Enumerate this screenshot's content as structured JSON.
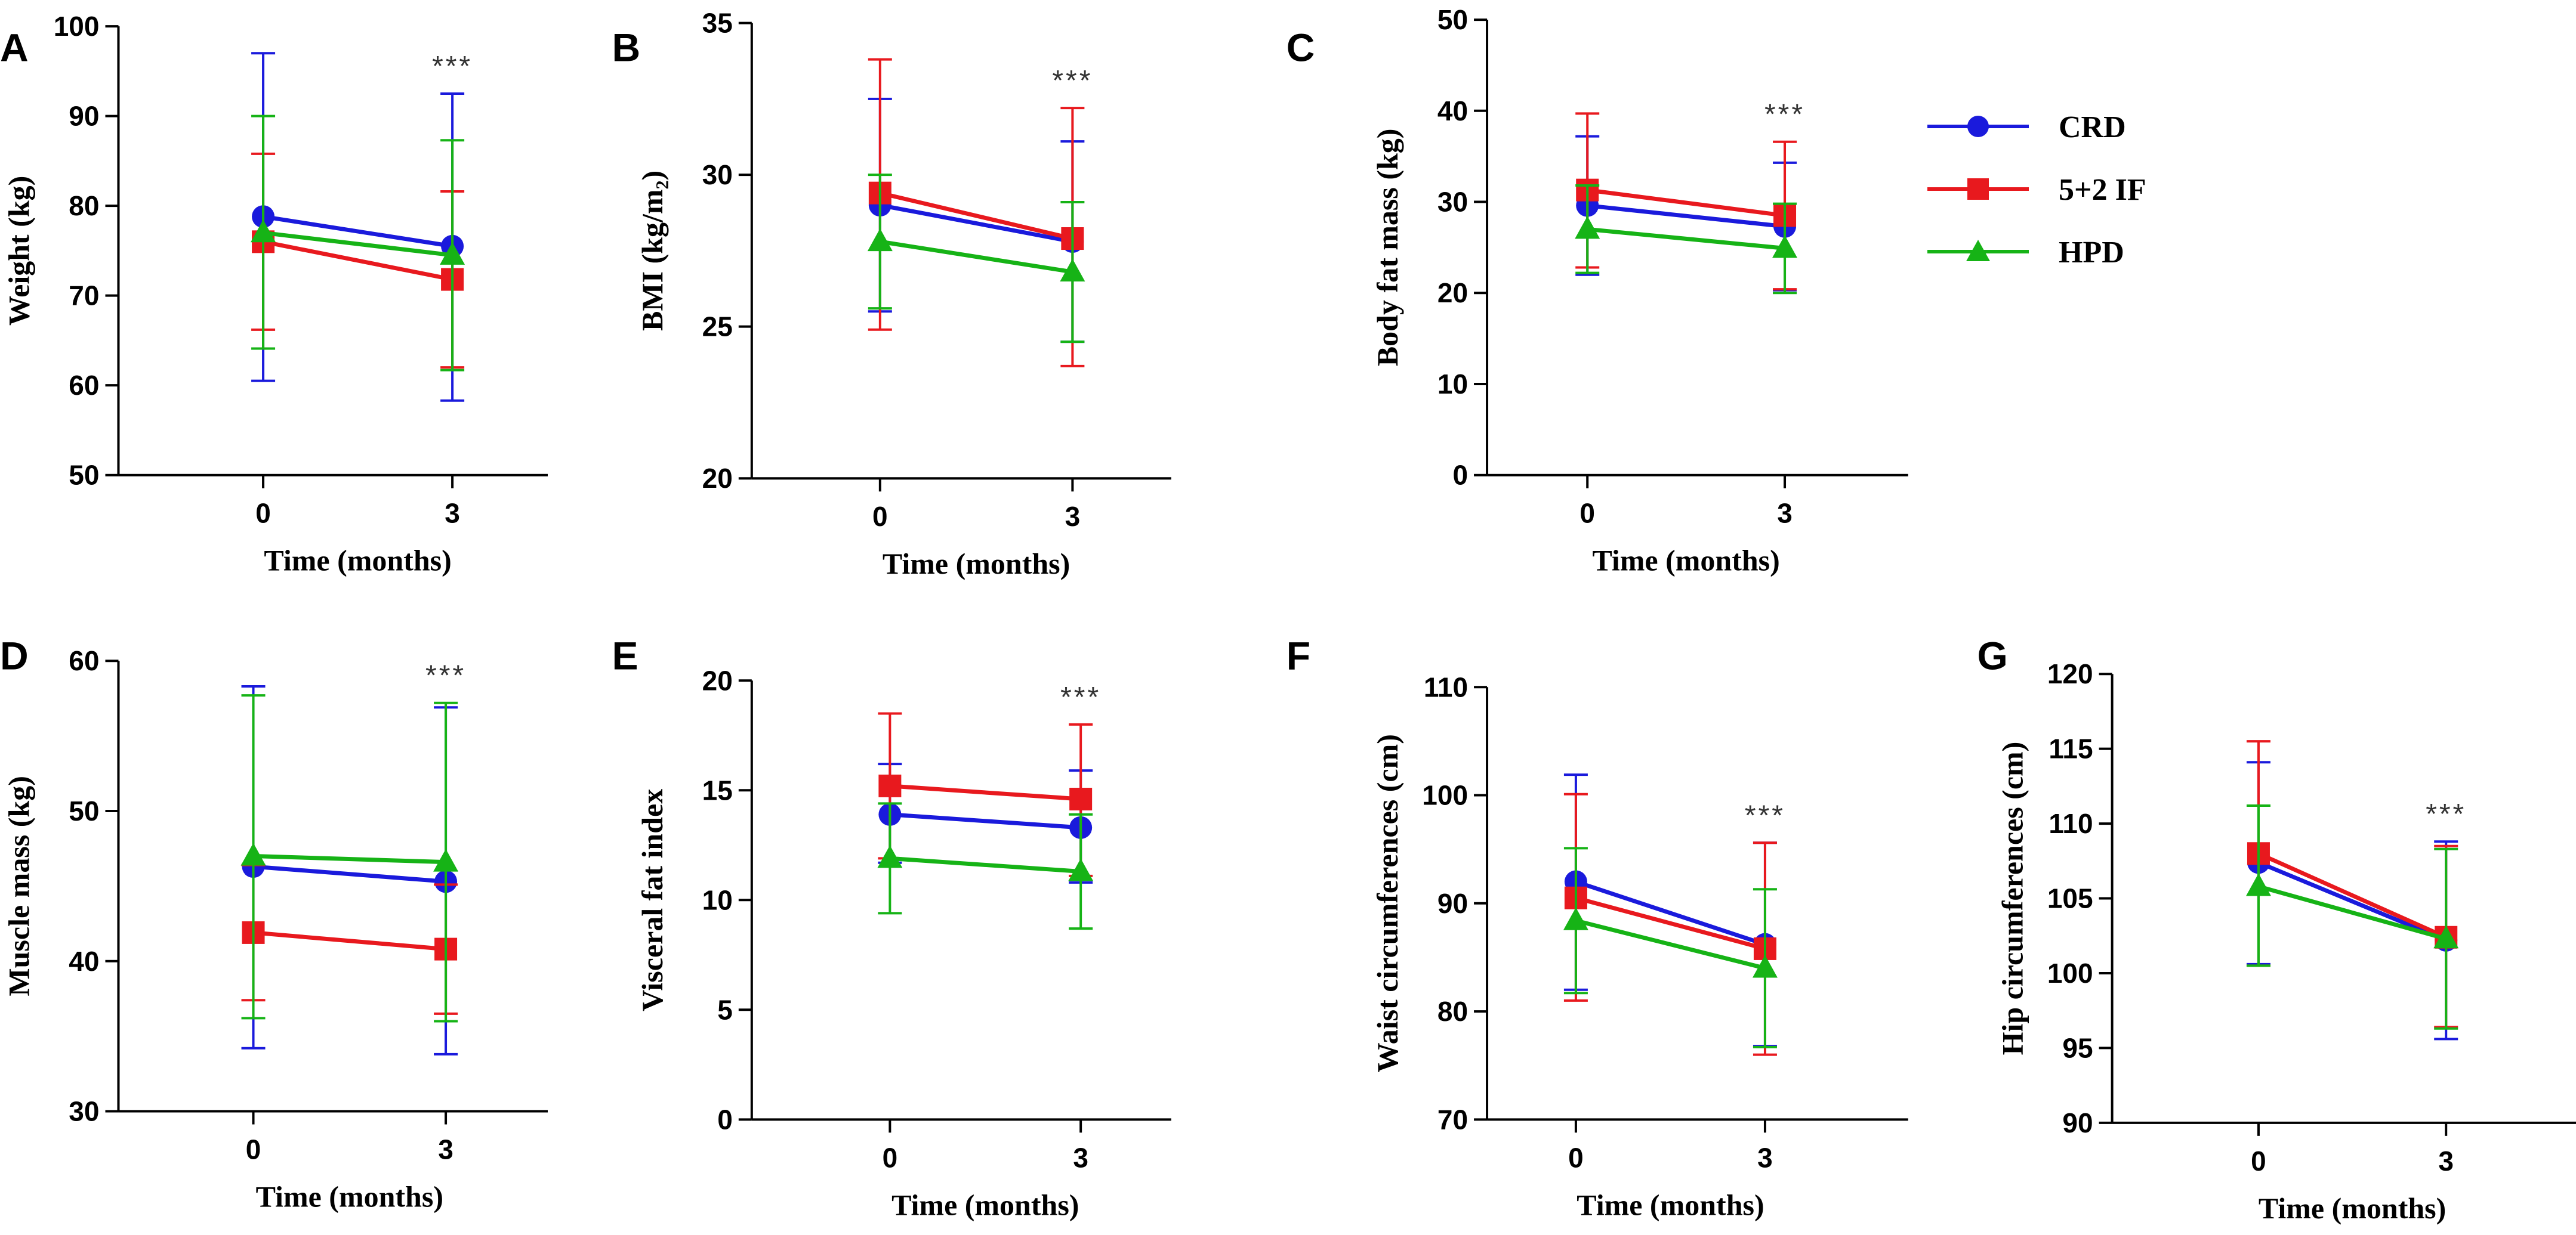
{
  "colors": {
    "CRD": "#1a1adc",
    "5+2 IF": "#e8191e",
    "HPD": "#16b316"
  },
  "legend": {
    "items": [
      {
        "label": "CRD",
        "marker": "circle"
      },
      {
        "label": "5+2 IF",
        "marker": "square"
      },
      {
        "label": "HPD",
        "marker": "triangle"
      }
    ]
  },
  "chart_data": [
    {
      "panel": "A",
      "type": "line",
      "xlabel": "Time (months)",
      "ylabel": "Weight (kg)",
      "x": [
        0,
        3
      ],
      "ylim": [
        50,
        100
      ],
      "yticks": [
        50,
        60,
        70,
        80,
        90,
        100
      ],
      "significance": "***",
      "series": [
        {
          "name": "CRD",
          "values": [
            78.8,
            75.5
          ],
          "err_low": [
            60.5,
            58.3
          ],
          "err_high": [
            97.0,
            92.5
          ]
        },
        {
          "name": "5+2 IF",
          "values": [
            76.0,
            71.8
          ],
          "err_low": [
            66.2,
            62.0
          ],
          "err_high": [
            85.8,
            81.6
          ]
        },
        {
          "name": "HPD",
          "values": [
            77.0,
            74.5
          ],
          "err_low": [
            64.1,
            61.7
          ],
          "err_high": [
            90.0,
            87.3
          ]
        }
      ]
    },
    {
      "panel": "B",
      "type": "line",
      "xlabel": "Time (months)",
      "ylabel": "BMI (kg/m₂)",
      "x": [
        0,
        3
      ],
      "ylim": [
        20,
        35
      ],
      "yticks": [
        20,
        25,
        30,
        35
      ],
      "significance": "***",
      "series": [
        {
          "name": "CRD",
          "values": [
            29.0,
            27.8
          ],
          "err_low": [
            25.5,
            24.5
          ],
          "err_high": [
            32.5,
            31.1
          ]
        },
        {
          "name": "5+2 IF",
          "values": [
            29.4,
            27.9
          ],
          "err_low": [
            24.9,
            23.7
          ],
          "err_high": [
            33.8,
            32.2
          ]
        },
        {
          "name": "HPD",
          "values": [
            27.8,
            26.8
          ],
          "err_low": [
            25.6,
            24.5
          ],
          "err_high": [
            30.0,
            29.1
          ]
        }
      ]
    },
    {
      "panel": "C",
      "type": "line",
      "xlabel": "Time (months)",
      "ylabel": "Body fat mass (kg)",
      "x": [
        0,
        3
      ],
      "ylim": [
        0,
        50
      ],
      "yticks": [
        0,
        10,
        20,
        30,
        40,
        50
      ],
      "significance": "***",
      "series": [
        {
          "name": "CRD",
          "values": [
            29.6,
            27.3
          ],
          "err_low": [
            22.0,
            20.3
          ],
          "err_high": [
            37.2,
            34.3
          ]
        },
        {
          "name": "5+2 IF",
          "values": [
            31.3,
            28.5
          ],
          "err_low": [
            22.8,
            20.4
          ],
          "err_high": [
            39.7,
            36.6
          ]
        },
        {
          "name": "HPD",
          "values": [
            27.0,
            24.9
          ],
          "err_low": [
            22.2,
            20.0
          ],
          "err_high": [
            31.8,
            29.8
          ]
        }
      ]
    },
    {
      "panel": "D",
      "type": "line",
      "xlabel": "Time (months)",
      "ylabel": "Muscle mass (kg)",
      "x": [
        0,
        3
      ],
      "ylim": [
        30,
        60
      ],
      "yticks": [
        30,
        40,
        50,
        60
      ],
      "significance": "***",
      "series": [
        {
          "name": "CRD",
          "values": [
            46.3,
            45.3
          ],
          "err_low": [
            34.2,
            33.8
          ],
          "err_high": [
            58.3,
            56.9
          ]
        },
        {
          "name": "5+2 IF",
          "values": [
            41.9,
            40.8
          ],
          "err_low": [
            37.4,
            36.5
          ],
          "err_high": [
            46.4,
            45.1
          ]
        },
        {
          "name": "HPD",
          "values": [
            47.0,
            46.6
          ],
          "err_low": [
            36.2,
            36.0
          ],
          "err_high": [
            57.7,
            57.2
          ]
        }
      ]
    },
    {
      "panel": "E",
      "type": "line",
      "xlabel": "Time (months)",
      "ylabel": "Visceral fat index",
      "x": [
        0,
        3
      ],
      "ylim": [
        0,
        20
      ],
      "yticks": [
        0,
        5,
        10,
        15,
        20
      ],
      "significance": "***",
      "series": [
        {
          "name": "CRD",
          "values": [
            13.9,
            13.3
          ],
          "err_low": [
            11.7,
            10.8
          ],
          "err_high": [
            16.2,
            15.9
          ]
        },
        {
          "name": "5+2 IF",
          "values": [
            15.2,
            14.6
          ],
          "err_low": [
            11.9,
            11.1
          ],
          "err_high": [
            18.5,
            18.0
          ]
        },
        {
          "name": "HPD",
          "values": [
            11.9,
            11.3
          ],
          "err_low": [
            9.4,
            8.7
          ],
          "err_high": [
            14.4,
            13.9
          ]
        }
      ]
    },
    {
      "panel": "F",
      "type": "line",
      "xlabel": "Time (months)",
      "ylabel": "Waist circumferences (cm)",
      "x": [
        0,
        3
      ],
      "ylim": [
        70,
        110
      ],
      "yticks": [
        70,
        80,
        90,
        100,
        110
      ],
      "significance": "***",
      "series": [
        {
          "name": "CRD",
          "values": [
            92.0,
            86.2
          ],
          "err_low": [
            82.0,
            76.8
          ],
          "err_high": [
            101.9,
            95.6
          ]
        },
        {
          "name": "5+2 IF",
          "values": [
            90.5,
            85.8
          ],
          "err_low": [
            81.0,
            76.0
          ],
          "err_high": [
            100.1,
            95.6
          ]
        },
        {
          "name": "HPD",
          "values": [
            88.4,
            84.0
          ],
          "err_low": [
            81.7,
            76.7
          ],
          "err_high": [
            95.1,
            91.3
          ]
        }
      ]
    },
    {
      "panel": "G",
      "type": "line",
      "xlabel": "Time (months)",
      "ylabel": "Hip circumferences (cm)",
      "x": [
        0,
        3
      ],
      "ylim": [
        90,
        120
      ],
      "yticks": [
        90,
        95,
        100,
        105,
        110,
        115,
        120
      ],
      "significance": "***",
      "series": [
        {
          "name": "CRD",
          "values": [
            107.4,
            102.2
          ],
          "err_low": [
            100.6,
            95.6
          ],
          "err_high": [
            114.1,
            108.8
          ]
        },
        {
          "name": "5+2 IF",
          "values": [
            108.0,
            102.4
          ],
          "err_low": [
            100.5,
            96.4
          ],
          "err_high": [
            115.5,
            108.5
          ]
        },
        {
          "name": "HPD",
          "values": [
            105.8,
            102.3
          ],
          "err_low": [
            100.5,
            96.3
          ],
          "err_high": [
            111.2,
            108.3
          ]
        }
      ]
    }
  ]
}
